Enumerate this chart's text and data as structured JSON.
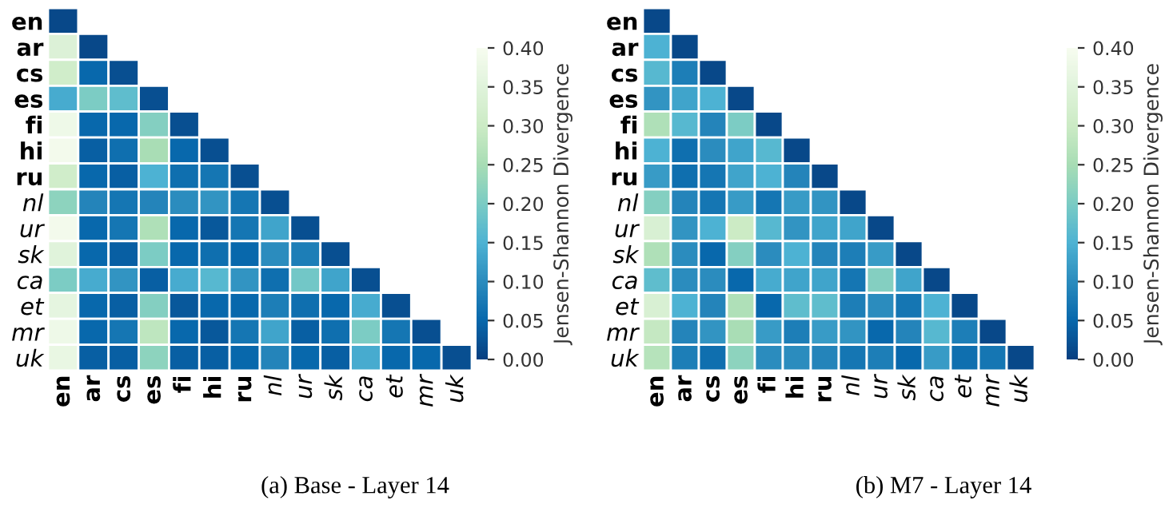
{
  "chart_data": [
    {
      "type": "heatmap",
      "categories": [
        "en",
        "ar",
        "cs",
        "es",
        "fi",
        "hi",
        "ru",
        "nl",
        "ur",
        "sk",
        "ca",
        "et",
        "mr",
        "uk"
      ],
      "y_categories": [
        "en",
        "ar",
        "cs",
        "es",
        "fi",
        "hi",
        "ru",
        "nl",
        "ur",
        "sk",
        "ca",
        "et",
        "mr",
        "uk"
      ],
      "clabel": "Jensen-Shannon Divergence",
      "clim": [
        0,
        0.4
      ],
      "cticks": [
        {
          "value": 0,
          "label": "0.00"
        },
        {
          "value": 0.05,
          "label": "0.05"
        },
        {
          "value": 0.1,
          "label": "0.10"
        },
        {
          "value": 0.15,
          "label": "0.15"
        },
        {
          "value": 0.2,
          "label": "0.20"
        },
        {
          "value": 0.25,
          "label": "0.25"
        },
        {
          "value": 0.3,
          "label": "0.30"
        },
        {
          "value": 0.35,
          "label": "0.35"
        },
        {
          "value": 0.4,
          "label": "0.40"
        }
      ],
      "annotations": [
        "(a) Base - Layer 14"
      ],
      "cells": [
        [
          0.01,
          null,
          null,
          null,
          null,
          null,
          null,
          null,
          null,
          null,
          null,
          null,
          null,
          null
        ],
        [
          0.34,
          0.01,
          null,
          null,
          null,
          null,
          null,
          null,
          null,
          null,
          null,
          null,
          null,
          null
        ],
        [
          0.31,
          0.05,
          0.02,
          null,
          null,
          null,
          null,
          null,
          null,
          null,
          null,
          null,
          null,
          null
        ],
        [
          0.14,
          0.2,
          0.17,
          0.02,
          null,
          null,
          null,
          null,
          null,
          null,
          null,
          null,
          null,
          null
        ],
        [
          0.38,
          0.05,
          0.05,
          0.21,
          0.02,
          null,
          null,
          null,
          null,
          null,
          null,
          null,
          null,
          null
        ],
        [
          0.39,
          0.04,
          0.06,
          0.25,
          0.05,
          0.02,
          null,
          null,
          null,
          null,
          null,
          null,
          null,
          null
        ],
        [
          0.31,
          0.05,
          0.04,
          0.15,
          0.06,
          0.07,
          0.02,
          null,
          null,
          null,
          null,
          null,
          null,
          null
        ],
        [
          0.22,
          0.09,
          0.07,
          0.09,
          0.1,
          0.11,
          0.07,
          0.02,
          null,
          null,
          null,
          null,
          null,
          null
        ],
        [
          0.39,
          0.05,
          0.07,
          0.26,
          0.05,
          0.03,
          0.07,
          0.13,
          0.02,
          null,
          null,
          null,
          null,
          null
        ],
        [
          0.35,
          0.05,
          0.04,
          0.2,
          0.05,
          0.06,
          0.05,
          0.1,
          0.08,
          0.02,
          null,
          null,
          null,
          null
        ],
        [
          0.2,
          0.14,
          0.11,
          0.04,
          0.14,
          0.16,
          0.11,
          0.06,
          0.19,
          0.13,
          0.02,
          null,
          null,
          null
        ],
        [
          0.36,
          0.05,
          0.04,
          0.21,
          0.03,
          0.05,
          0.05,
          0.08,
          0.06,
          0.05,
          0.14,
          0.02,
          null,
          null
        ],
        [
          0.38,
          0.05,
          0.07,
          0.28,
          0.05,
          0.03,
          0.07,
          0.13,
          0.04,
          0.06,
          0.2,
          0.07,
          0.02,
          null
        ],
        [
          0.37,
          0.04,
          0.04,
          0.22,
          0.04,
          0.04,
          0.05,
          0.09,
          0.05,
          0.04,
          0.14,
          0.05,
          0.05,
          0.02
        ]
      ]
    },
    {
      "type": "heatmap",
      "categories": [
        "en",
        "ar",
        "cs",
        "es",
        "fi",
        "hi",
        "ru",
        "nl",
        "ur",
        "sk",
        "ca",
        "et",
        "mr",
        "uk"
      ],
      "y_categories": [
        "en",
        "ar",
        "cs",
        "es",
        "fi",
        "hi",
        "ru",
        "nl",
        "ur",
        "sk",
        "ca",
        "et",
        "mr",
        "uk"
      ],
      "clabel": "Jensen-Shannon Divergence",
      "clim": [
        0,
        0.4
      ],
      "cticks": [
        {
          "value": 0,
          "label": "0.00"
        },
        {
          "value": 0.05,
          "label": "0.05"
        },
        {
          "value": 0.1,
          "label": "0.10"
        },
        {
          "value": 0.15,
          "label": "0.15"
        },
        {
          "value": 0.2,
          "label": "0.20"
        },
        {
          "value": 0.25,
          "label": "0.25"
        },
        {
          "value": 0.3,
          "label": "0.30"
        },
        {
          "value": 0.35,
          "label": "0.35"
        },
        {
          "value": 0.4,
          "label": "0.40"
        }
      ],
      "annotations": [
        "(b) M7 - Layer 14"
      ],
      "cells": [
        [
          0.01,
          null,
          null,
          null,
          null,
          null,
          null,
          null,
          null,
          null,
          null,
          null,
          null,
          null
        ],
        [
          0.15,
          0.01,
          null,
          null,
          null,
          null,
          null,
          null,
          null,
          null,
          null,
          null,
          null,
          null
        ],
        [
          0.16,
          0.08,
          0.01,
          null,
          null,
          null,
          null,
          null,
          null,
          null,
          null,
          null,
          null,
          null
        ],
        [
          0.11,
          0.13,
          0.15,
          0.01,
          null,
          null,
          null,
          null,
          null,
          null,
          null,
          null,
          null,
          null
        ],
        [
          0.26,
          0.16,
          0.09,
          0.2,
          0.01,
          null,
          null,
          null,
          null,
          null,
          null,
          null,
          null,
          null
        ],
        [
          0.15,
          0.06,
          0.1,
          0.13,
          0.16,
          0.01,
          null,
          null,
          null,
          null,
          null,
          null,
          null,
          null
        ],
        [
          0.12,
          0.06,
          0.07,
          0.13,
          0.15,
          0.09,
          0.01,
          null,
          null,
          null,
          null,
          null,
          null,
          null
        ],
        [
          0.21,
          0.09,
          0.07,
          0.12,
          0.07,
          0.12,
          0.11,
          0.01,
          null,
          null,
          null,
          null,
          null,
          null
        ],
        [
          0.33,
          0.11,
          0.15,
          0.3,
          0.16,
          0.11,
          0.13,
          0.13,
          0.01,
          null,
          null,
          null,
          null,
          null
        ],
        [
          0.26,
          0.1,
          0.05,
          0.21,
          0.1,
          0.15,
          0.09,
          0.08,
          0.12,
          0.01,
          null,
          null,
          null,
          null
        ],
        [
          0.17,
          0.1,
          0.1,
          0.05,
          0.14,
          0.13,
          0.13,
          0.07,
          0.21,
          0.13,
          0.01,
          null,
          null,
          null
        ],
        [
          0.33,
          0.15,
          0.09,
          0.26,
          0.05,
          0.17,
          0.17,
          0.08,
          0.1,
          0.07,
          0.15,
          0.01,
          null,
          null
        ],
        [
          0.29,
          0.09,
          0.11,
          0.25,
          0.12,
          0.08,
          0.12,
          0.11,
          0.05,
          0.09,
          0.16,
          0.08,
          0.01,
          null
        ],
        [
          0.27,
          0.08,
          0.06,
          0.22,
          0.1,
          0.1,
          0.09,
          0.07,
          0.08,
          0.05,
          0.12,
          0.06,
          0.07,
          0.01
        ]
      ]
    }
  ]
}
